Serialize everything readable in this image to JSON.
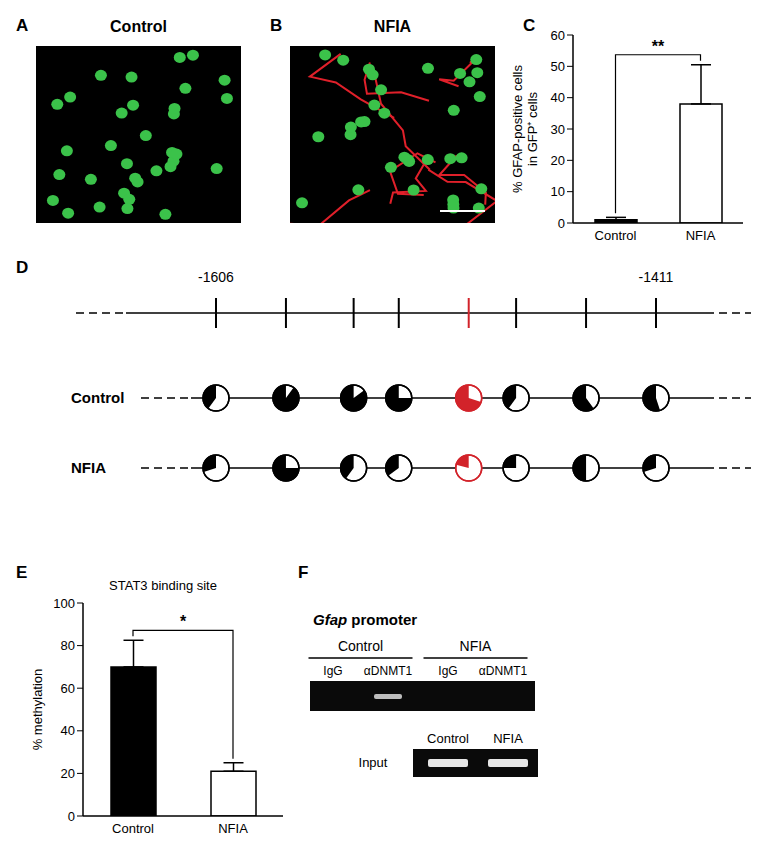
{
  "images": [
    {
      "label": "A",
      "title": "Control",
      "red_cells": false,
      "scale_bar": false
    },
    {
      "label": "B",
      "title": "NFIA",
      "red_cells": true,
      "scale_bar": true
    }
  ],
  "chart_data": [
    {
      "label": "C",
      "type": "bar",
      "y_label": [
        "% GFAP-positive cells",
        "in GFP⁺ cells"
      ],
      "categories": [
        "Control",
        "NFIA"
      ],
      "values": [
        1,
        38
      ],
      "errors": [
        0.8,
        12.5
      ],
      "colors": [
        "#000000",
        "#ffffff"
      ],
      "ylim": [
        0,
        60
      ],
      "yticks": [
        0,
        10,
        20,
        30,
        40,
        50,
        60
      ],
      "annotation": "**"
    },
    {
      "label": "E",
      "type": "bar",
      "title": "STAT3 binding site",
      "y_label": "% methylation",
      "categories": [
        "Control",
        "NFIA"
      ],
      "values": [
        70,
        21
      ],
      "errors": [
        12.5,
        4
      ],
      "colors": [
        "#000000",
        "#ffffff"
      ],
      "ylim": [
        0,
        100
      ],
      "yticks": [
        0,
        20,
        40,
        60,
        80,
        100
      ],
      "annotation": "*"
    }
  ],
  "diagram": {
    "label": "D",
    "positions": [
      -1606,
      -1575,
      -1545,
      -1525,
      -1494,
      -1473,
      -1442,
      -1411
    ],
    "position_labels": [
      "-1606",
      null,
      null,
      null,
      null,
      null,
      null,
      "-1411"
    ],
    "colors": [
      "#000000",
      "#000000",
      "#000000",
      "#000000",
      "#d2232a",
      "#000000",
      "#000000",
      "#000000"
    ],
    "rows": [
      {
        "name": "Control",
        "methylation": [
          40,
          90,
          85,
          75,
          70,
          40,
          60,
          55
        ]
      },
      {
        "name": "NFIA",
        "methylation": [
          30,
          75,
          40,
          35,
          21,
          25,
          50,
          30
        ]
      }
    ]
  },
  "gel": {
    "label": "F",
    "title": "Gfap promoter",
    "groups": [
      "Control",
      "NFIA"
    ],
    "lanes": [
      "IgG",
      "αDNMT1",
      "IgG",
      "αDNMT1"
    ],
    "bands": [
      false,
      true,
      false,
      false
    ],
    "input": {
      "label": "Input",
      "lanes": [
        "Control",
        "NFIA"
      ],
      "bands": [
        true,
        true
      ]
    }
  }
}
